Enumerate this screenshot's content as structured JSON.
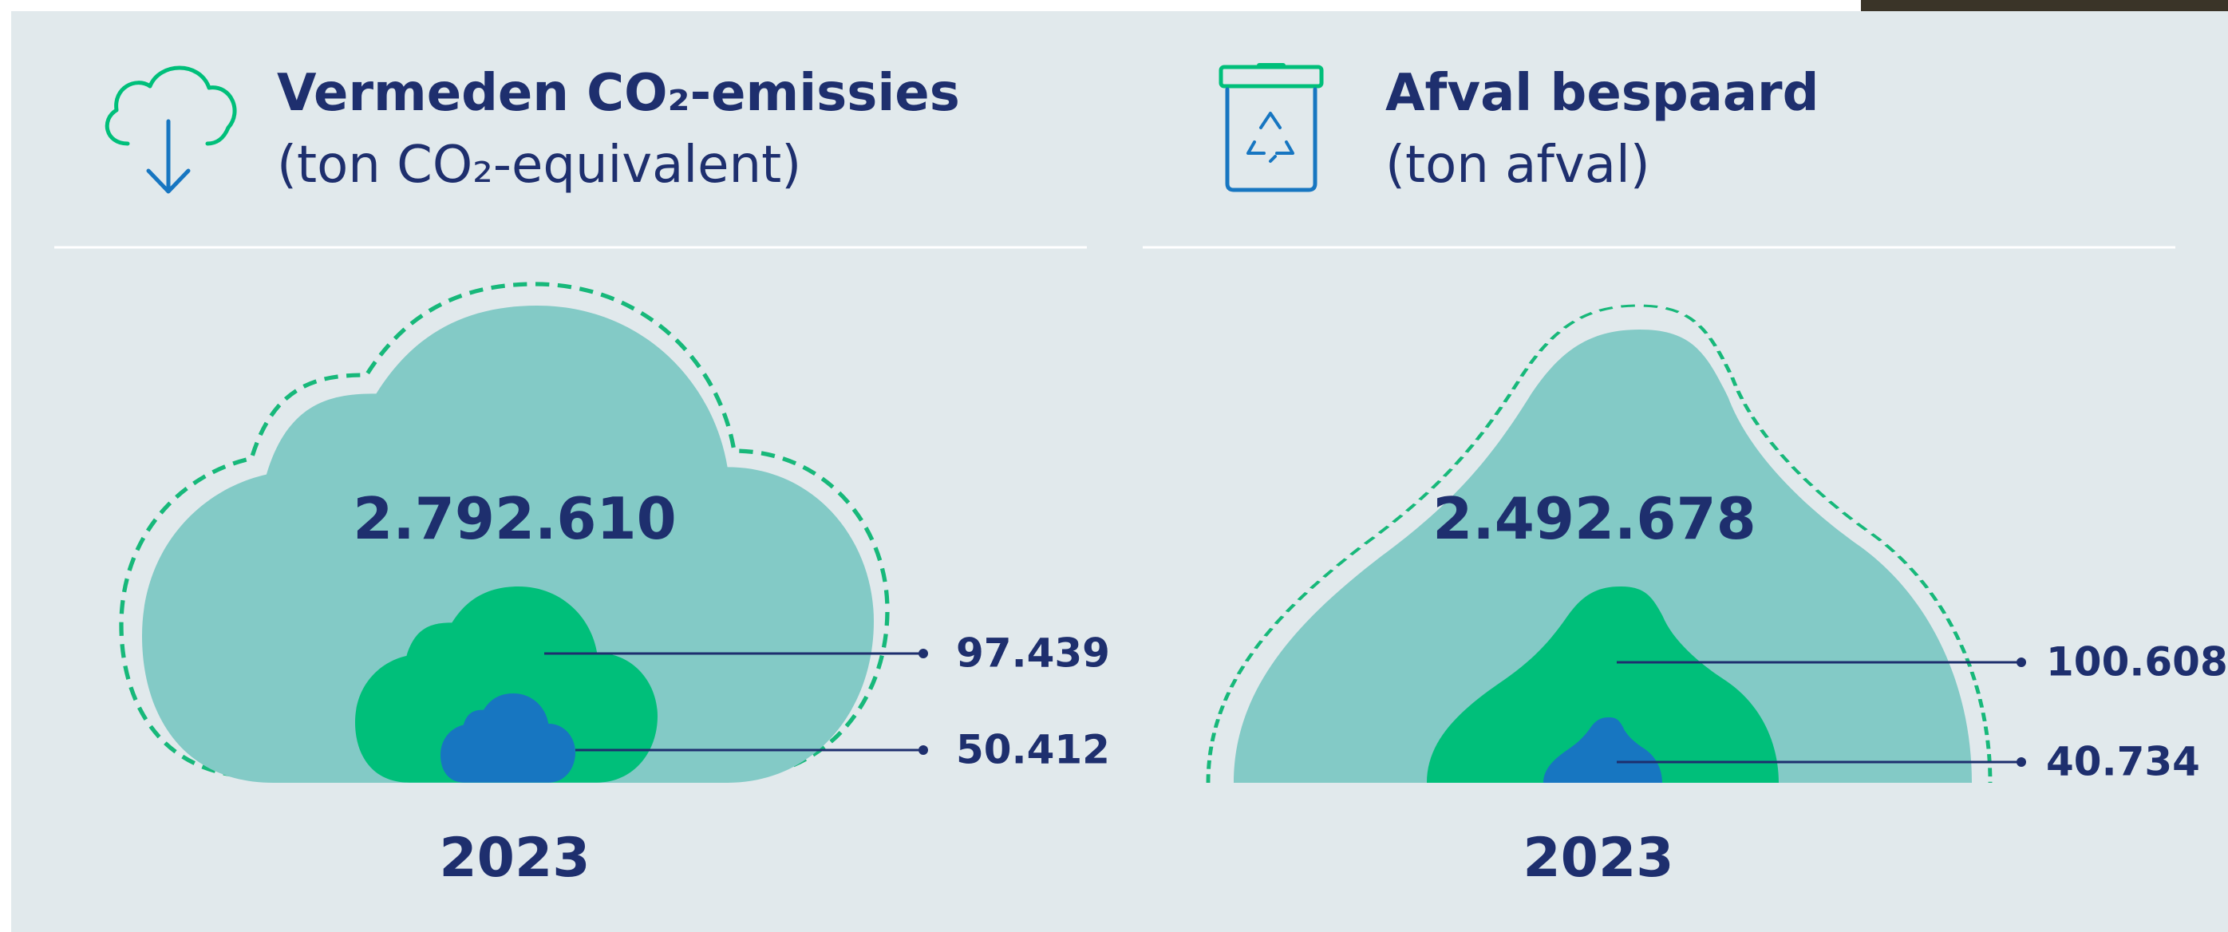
{
  "panels": [
    {
      "title": "Vermeden CO₂-emissies",
      "subtitle": "(ton CO₂-equivalent)",
      "total": "2.792.610",
      "values": [
        "97.439",
        "50.412"
      ],
      "year": "2023"
    },
    {
      "title": "Afval bespaard",
      "subtitle": "(ton afval)",
      "total": "2.492.678",
      "values": [
        "100.608",
        "40.734"
      ],
      "year": "2023"
    }
  ]
}
